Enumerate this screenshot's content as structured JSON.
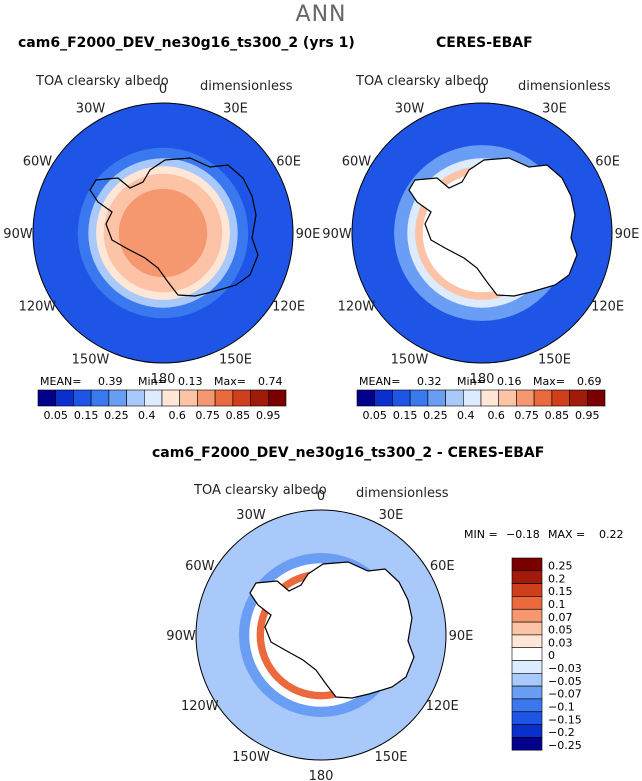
{
  "page_title": "ANN",
  "colors": {
    "land_outline": "#000000",
    "palette_abs": [
      "#00008b",
      "#0a2fcc",
      "#1f55e6",
      "#3a78f0",
      "#6a9ef5",
      "#a9c9fa",
      "#dcebff",
      "#ffe6d6",
      "#fcc3a6",
      "#f6986f",
      "#ea6a3e",
      "#cf3f1c",
      "#a11a0a",
      "#7a0000"
    ],
    "palette_diff": [
      "#00008b",
      "#0a2fcc",
      "#1f55e6",
      "#3a78f0",
      "#6a9ef5",
      "#a9c9fa",
      "#dcebff",
      "#ffffff",
      "#ffe6d6",
      "#fcc3a6",
      "#f6986f",
      "#ea6a3e",
      "#cf3f1c",
      "#a11a0a",
      "#7a0000"
    ]
  },
  "chart_data": [
    {
      "type": "heatmap",
      "projection": "south-polar-stereographic",
      "title": "cam6_F2000_DEV_ne30g16_ts300_2 (yrs 1)",
      "variable_label": "TOA clearsky albedo",
      "units_label": "dimensionless",
      "longitude_labels": [
        "0",
        "30E",
        "60E",
        "90E",
        "120E",
        "150E",
        "180",
        "150W",
        "120W",
        "90W",
        "60W",
        "30W"
      ],
      "stats": {
        "mean_label": "MEAN=",
        "mean": "0.39",
        "min_label": "Min=",
        "min": "0.13",
        "max_label": "Max=",
        "max": "0.74"
      },
      "colorbar_levels": [
        "0.05",
        "0.15",
        "0.25",
        "0.4",
        "0.6",
        "0.75",
        "0.85",
        "0.95"
      ],
      "bands": [
        {
          "lat_from": -90,
          "lat_to": -72,
          "value": 0.65
        },
        {
          "lat_from": -72,
          "lat_to": -66,
          "value": 0.55
        },
        {
          "lat_from": -66,
          "lat_to": -63,
          "value": 0.42
        },
        {
          "lat_from": -63,
          "lat_to": -60,
          "value": 0.3
        },
        {
          "lat_from": -60,
          "lat_to": -56,
          "value": 0.2
        },
        {
          "lat_from": -56,
          "lat_to": -40,
          "value": 0.12
        }
      ]
    },
    {
      "type": "heatmap",
      "projection": "south-polar-stereographic",
      "title": "CERES-EBAF",
      "variable_label": "TOA clearsky albedo",
      "units_label": "dimensionless",
      "longitude_labels": [
        "0",
        "30E",
        "60E",
        "90E",
        "120E",
        "150E",
        "180",
        "150W",
        "120W",
        "90W",
        "60W",
        "30W"
      ],
      "stats": {
        "mean_label": "MEAN=",
        "mean": "0.32",
        "min_label": "Min=",
        "min": "0.16",
        "max_label": "Max=",
        "max": "0.69"
      },
      "colorbar_levels": [
        "0.05",
        "0.15",
        "0.25",
        "0.4",
        "0.6",
        "0.75",
        "0.85",
        "0.95"
      ],
      "bands": [
        {
          "lat_from": -90,
          "lat_to": -66,
          "value": null
        },
        {
          "lat_from": -66,
          "lat_to": -63,
          "value": 0.55
        },
        {
          "lat_from": -63,
          "lat_to": -60,
          "value": 0.35
        },
        {
          "lat_from": -60,
          "lat_to": -55,
          "value": 0.25
        },
        {
          "lat_from": -55,
          "lat_to": -40,
          "value": 0.15
        }
      ]
    },
    {
      "type": "heatmap",
      "projection": "south-polar-stereographic",
      "title": "cam6_F2000_DEV_ne30g16_ts300_2 - CERES-EBAF",
      "variable_label": "TOA clearsky albedo",
      "units_label": "dimensionless",
      "longitude_labels": [
        "0",
        "30E",
        "60E",
        "90E",
        "120E",
        "150E",
        "180",
        "150W",
        "120W",
        "90W",
        "60W",
        "30W"
      ],
      "stats": {
        "min_label": "MIN =",
        "min": "−0.18",
        "max_label": "MAX =",
        "max": "0.22"
      },
      "colorbar_levels": [
        "0.25",
        "0.2",
        "0.15",
        "0.1",
        "0.07",
        "0.05",
        "0.03",
        "0",
        "−0.03",
        "−0.05",
        "−0.07",
        "−0.1",
        "−0.15",
        "−0.2",
        "−0.25"
      ],
      "bands": [
        {
          "lat_from": -90,
          "lat_to": -66,
          "value": null
        },
        {
          "lat_from": -66,
          "lat_to": -63,
          "value": 0.15
        },
        {
          "lat_from": -63,
          "lat_to": -60,
          "value": 0.0
        },
        {
          "lat_from": -60,
          "lat_to": -56,
          "value": -0.07
        },
        {
          "lat_from": -56,
          "lat_to": -40,
          "value": -0.05
        }
      ]
    }
  ]
}
